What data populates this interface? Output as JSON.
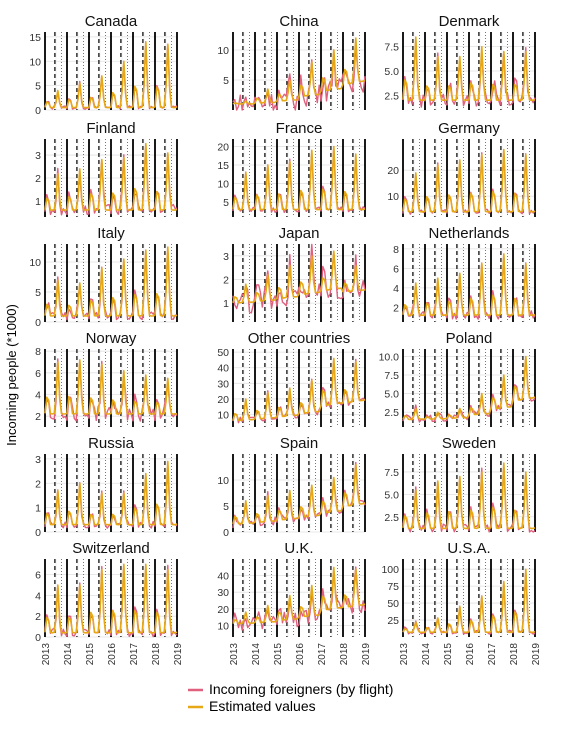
{
  "figure": {
    "ylabel": "Incoming people (*1000)",
    "x_tick_labels": [
      "2013",
      "2014",
      "2015",
      "2016",
      "2017",
      "2018",
      "2019"
    ],
    "legend": [
      {
        "label": "Incoming foreigners (by flight)",
        "color": "#e0607e"
      },
      {
        "label": "Estimated values",
        "color": "#e6a817"
      }
    ]
  },
  "chart_data": [
    {
      "type": "line",
      "title": "Canada",
      "ylim": [
        0,
        16
      ],
      "yticks": [
        "0",
        "5",
        "10",
        "15"
      ],
      "yvals": [
        0,
        5,
        10,
        15
      ],
      "peaks": [
        4,
        5.5,
        7,
        10,
        14,
        13.5
      ],
      "base": 0.5,
      "noise": 0.4
    },
    {
      "type": "line",
      "title": "China",
      "ylim": [
        0,
        13
      ],
      "yticks": [
        "5",
        "10"
      ],
      "yvals": [
        5,
        10
      ],
      "peaks": [
        1.5,
        3.5,
        5,
        8,
        10,
        12
      ],
      "base": 1,
      "noise": 1.8,
      "trend": true
    },
    {
      "type": "line",
      "title": "Denmark",
      "ylim": [
        1,
        9
      ],
      "yticks": [
        "2.5",
        "5.0",
        "7.5"
      ],
      "yvals": [
        2.5,
        5.0,
        7.5
      ],
      "peaks": [
        8.5,
        6.5,
        6.5,
        7.5,
        7,
        7
      ],
      "base": 2,
      "noise": 0.7
    },
    {
      "type": "line",
      "title": "Finland",
      "ylim": [
        0.3,
        3.7
      ],
      "yticks": [
        "1",
        "2",
        "3"
      ],
      "yvals": [
        1,
        2,
        3
      ],
      "peaks": [
        2.2,
        2.4,
        2.8,
        2.9,
        3.5,
        3.1
      ],
      "base": 0.6,
      "noise": 0.25
    },
    {
      "type": "line",
      "title": "France",
      "ylim": [
        1,
        22
      ],
      "yticks": [
        "5",
        "10",
        "15",
        "20"
      ],
      "yvals": [
        5,
        10,
        15,
        20
      ],
      "peaks": [
        13,
        15,
        16,
        19,
        20,
        18
      ],
      "base": 3,
      "noise": 0.8
    },
    {
      "type": "line",
      "title": "Germany",
      "ylim": [
        2,
        32
      ],
      "yticks": [
        "10",
        "20"
      ],
      "yvals": [
        10,
        20
      ],
      "peaks": [
        19,
        22,
        24,
        26,
        28,
        26
      ],
      "base": 4,
      "noise": 1
    },
    {
      "type": "line",
      "title": "Italy",
      "ylim": [
        0,
        13
      ],
      "yticks": [
        "0",
        "5",
        "10"
      ],
      "yvals": [
        0,
        5,
        10
      ],
      "peaks": [
        7,
        6.5,
        9,
        10.5,
        12,
        12.5
      ],
      "base": 1,
      "noise": 0.8
    },
    {
      "type": "line",
      "title": "Japan",
      "ylim": [
        0.2,
        3.5
      ],
      "yticks": [
        "1",
        "2",
        "3"
      ],
      "yvals": [
        1,
        2,
        3
      ],
      "peaks": [
        1.8,
        2.2,
        2.6,
        3.0,
        3.2,
        2.6
      ],
      "base": 1,
      "noise": 0.5,
      "trend": true
    },
    {
      "type": "line",
      "title": "Netherlands",
      "ylim": [
        0.5,
        8.5
      ],
      "yticks": [
        "2",
        "4",
        "6",
        "8"
      ],
      "yvals": [
        2,
        4,
        6,
        8
      ],
      "peaks": [
        4.5,
        5,
        5.5,
        6.5,
        7.5,
        6.5
      ],
      "base": 1.2,
      "noise": 0.5
    },
    {
      "type": "line",
      "title": "Norway",
      "ylim": [
        1,
        8.2
      ],
      "yticks": [
        "2",
        "4",
        "6",
        "8"
      ],
      "yvals": [
        2,
        4,
        6,
        8
      ],
      "peaks": [
        7,
        7.2,
        6.8,
        6.2,
        5.8,
        5.5
      ],
      "base": 2.2,
      "noise": 0.7
    },
    {
      "type": "line",
      "title": "Other countries",
      "ylim": [
        2,
        52
      ],
      "yticks": [
        "10",
        "20",
        "30",
        "40",
        "50"
      ],
      "yvals": [
        10,
        20,
        30,
        40,
        50
      ],
      "peaks": [
        20,
        24,
        27,
        32,
        46,
        44
      ],
      "base": 6,
      "noise": 2,
      "trend": true
    },
    {
      "type": "line",
      "title": "Poland",
      "ylim": [
        0.5,
        11
      ],
      "yticks": [
        "2.5",
        "5.0",
        "7.5",
        "10.0"
      ],
      "yvals": [
        2.5,
        5.0,
        7.5,
        10.0
      ],
      "peaks": [
        3,
        2.5,
        3,
        5,
        7.5,
        10
      ],
      "base": 1.5,
      "noise": 0.5,
      "trend": true
    },
    {
      "type": "line",
      "title": "Russia",
      "ylim": [
        0,
        3.2
      ],
      "yticks": [
        "0",
        "1",
        "2",
        "3"
      ],
      "yvals": [
        0,
        1,
        2,
        3
      ],
      "peaks": [
        1.7,
        2,
        1.6,
        1.6,
        2.4,
        2.9
      ],
      "base": 0.3,
      "noise": 0.15
    },
    {
      "type": "line",
      "title": "Spain",
      "ylim": [
        0,
        15
      ],
      "yticks": [
        "0",
        "5",
        "10"
      ],
      "yvals": [
        0,
        5,
        10
      ],
      "peaks": [
        6,
        7,
        8,
        9,
        10.5,
        13
      ],
      "base": 1.5,
      "noise": 0.8,
      "trend": true
    },
    {
      "type": "line",
      "title": "Sweden",
      "ylim": [
        0.8,
        9.5
      ],
      "yticks": [
        "2.5",
        "5.0",
        "7.5"
      ],
      "yvals": [
        2.5,
        5.0,
        7.5
      ],
      "peaks": [
        5.5,
        6.5,
        7,
        7.5,
        8.5,
        7.5
      ],
      "base": 1.2,
      "noise": 0.5
    },
    {
      "type": "line",
      "title": "Switzerland",
      "ylim": [
        0,
        7.5
      ],
      "yticks": [
        "0",
        "2",
        "4",
        "6"
      ],
      "yvals": [
        0,
        2,
        4,
        6
      ],
      "peaks": [
        5,
        5,
        6.5,
        7,
        7,
        6.5
      ],
      "base": 0.4,
      "noise": 0.4
    },
    {
      "type": "line",
      "title": "U.K.",
      "ylim": [
        3,
        50
      ],
      "yticks": [
        "10",
        "20",
        "30",
        "40"
      ],
      "yvals": [
        10,
        20,
        30,
        40
      ],
      "peaks": [
        18,
        22,
        28,
        34,
        45,
        44
      ],
      "base": 11,
      "noise": 5,
      "trend": true
    },
    {
      "type": "line",
      "title": "U.S.A.",
      "ylim": [
        0,
        115
      ],
      "yticks": [
        "25",
        "50",
        "75",
        "100"
      ],
      "yvals": [
        25,
        50,
        75,
        100
      ],
      "peaks": [
        22,
        28,
        45,
        60,
        82,
        100
      ],
      "base": 7,
      "noise": 3
    }
  ]
}
